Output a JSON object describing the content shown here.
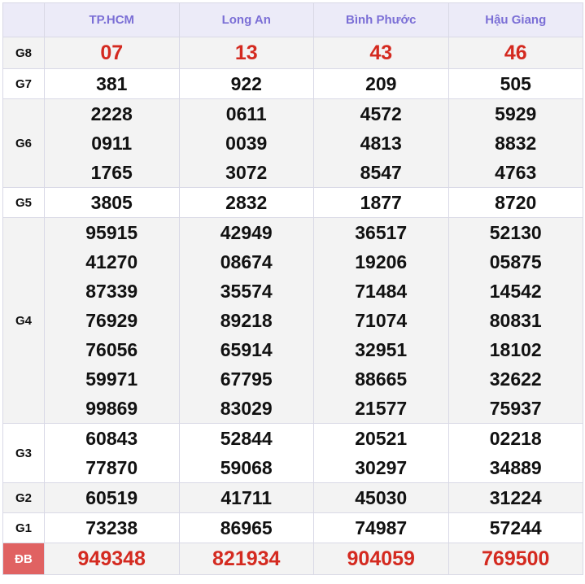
{
  "provinces": [
    "TP.HCM",
    "Long An",
    "Bình Phước",
    "Hậu Giang"
  ],
  "colors": {
    "header_text": "#7b6fd6",
    "highlight": "#d42a20",
    "db_label_bg": "#e06262"
  },
  "rows": [
    {
      "label": "G8",
      "values": [
        [
          "07"
        ],
        [
          "13"
        ],
        [
          "43"
        ],
        [
          "46"
        ]
      ],
      "highlight": true,
      "bg": "g"
    },
    {
      "label": "G7",
      "values": [
        [
          "381"
        ],
        [
          "922"
        ],
        [
          "209"
        ],
        [
          "505"
        ]
      ],
      "bg": "w"
    },
    {
      "label": "G6",
      "values": [
        [
          "2228",
          "0911",
          "1765"
        ],
        [
          "0611",
          "0039",
          "3072"
        ],
        [
          "4572",
          "4813",
          "8547"
        ],
        [
          "5929",
          "8832",
          "4763"
        ]
      ],
      "bg": "g"
    },
    {
      "label": "G5",
      "values": [
        [
          "3805"
        ],
        [
          "2832"
        ],
        [
          "1877"
        ],
        [
          "8720"
        ]
      ],
      "bg": "w"
    },
    {
      "label": "G4",
      "values": [
        [
          "95915",
          "41270",
          "87339",
          "76929",
          "76056",
          "59971",
          "99869"
        ],
        [
          "42949",
          "08674",
          "35574",
          "89218",
          "65914",
          "67795",
          "83029"
        ],
        [
          "36517",
          "19206",
          "71484",
          "71074",
          "32951",
          "88665",
          "21577"
        ],
        [
          "52130",
          "05875",
          "14542",
          "80831",
          "18102",
          "32622",
          "75937"
        ]
      ],
      "bg": "g"
    },
    {
      "label": "G3",
      "values": [
        [
          "60843",
          "77870"
        ],
        [
          "52844",
          "59068"
        ],
        [
          "20521",
          "30297"
        ],
        [
          "02218",
          "34889"
        ]
      ],
      "bg": "w"
    },
    {
      "label": "G2",
      "values": [
        [
          "60519"
        ],
        [
          "41711"
        ],
        [
          "45030"
        ],
        [
          "31224"
        ]
      ],
      "bg": "g"
    },
    {
      "label": "G1",
      "values": [
        [
          "73238"
        ],
        [
          "86965"
        ],
        [
          "74987"
        ],
        [
          "57244"
        ]
      ],
      "bg": "w"
    },
    {
      "label": "ĐB",
      "values": [
        [
          "949348"
        ],
        [
          "821934"
        ],
        [
          "904059"
        ],
        [
          "769500"
        ]
      ],
      "highlight": true,
      "bg": "g",
      "special": true
    }
  ]
}
